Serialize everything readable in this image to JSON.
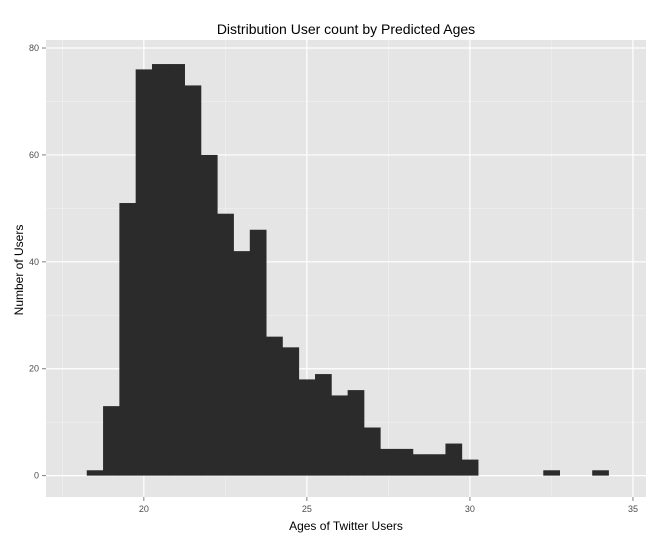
{
  "chart_data": {
    "type": "bar",
    "title": "Distribution User count by Predicted Ages",
    "xlabel": "Ages of Twitter Users",
    "ylabel": "Number of Users",
    "bin_width": 0.5,
    "bins": [
      {
        "x0": 18.25,
        "x1": 18.75,
        "count": 1
      },
      {
        "x0": 18.75,
        "x1": 19.25,
        "count": 13
      },
      {
        "x0": 19.25,
        "x1": 19.75,
        "count": 51
      },
      {
        "x0": 19.75,
        "x1": 20.25,
        "count": 76
      },
      {
        "x0": 20.25,
        "x1": 20.75,
        "count": 77
      },
      {
        "x0": 20.75,
        "x1": 21.25,
        "count": 77
      },
      {
        "x0": 21.25,
        "x1": 21.75,
        "count": 73
      },
      {
        "x0": 21.75,
        "x1": 22.25,
        "count": 60
      },
      {
        "x0": 22.25,
        "x1": 22.75,
        "count": 49
      },
      {
        "x0": 22.75,
        "x1": 23.25,
        "count": 42
      },
      {
        "x0": 23.25,
        "x1": 23.75,
        "count": 46
      },
      {
        "x0": 23.75,
        "x1": 24.25,
        "count": 26
      },
      {
        "x0": 24.25,
        "x1": 24.75,
        "count": 24
      },
      {
        "x0": 24.75,
        "x1": 25.25,
        "count": 18
      },
      {
        "x0": 25.25,
        "x1": 25.75,
        "count": 19
      },
      {
        "x0": 25.75,
        "x1": 26.25,
        "count": 15
      },
      {
        "x0": 26.25,
        "x1": 26.75,
        "count": 16
      },
      {
        "x0": 26.75,
        "x1": 27.25,
        "count": 9
      },
      {
        "x0": 27.25,
        "x1": 27.75,
        "count": 5
      },
      {
        "x0": 27.75,
        "x1": 28.25,
        "count": 5
      },
      {
        "x0": 28.25,
        "x1": 28.75,
        "count": 4
      },
      {
        "x0": 28.75,
        "x1": 29.25,
        "count": 4
      },
      {
        "x0": 29.25,
        "x1": 29.75,
        "count": 6
      },
      {
        "x0": 29.75,
        "x1": 30.25,
        "count": 3
      },
      {
        "x0": 32.25,
        "x1": 32.75,
        "count": 1
      },
      {
        "x0": 33.75,
        "x1": 34.25,
        "count": 1
      }
    ],
    "xlim": [
      17,
      35.4
    ],
    "ylim": [
      -4,
      81.5
    ],
    "x_ticks": [
      20,
      25,
      30,
      35
    ],
    "y_ticks": [
      0,
      20,
      40,
      60,
      80
    ],
    "grid": true,
    "legend": "none",
    "colors": {
      "panel_background": "#e5e5e5",
      "grid_major": "#ffffff",
      "grid_minor": "#f2f2f2",
      "bar_fill": "#2b2b2b",
      "tick_text": "#4d4d4d"
    }
  }
}
